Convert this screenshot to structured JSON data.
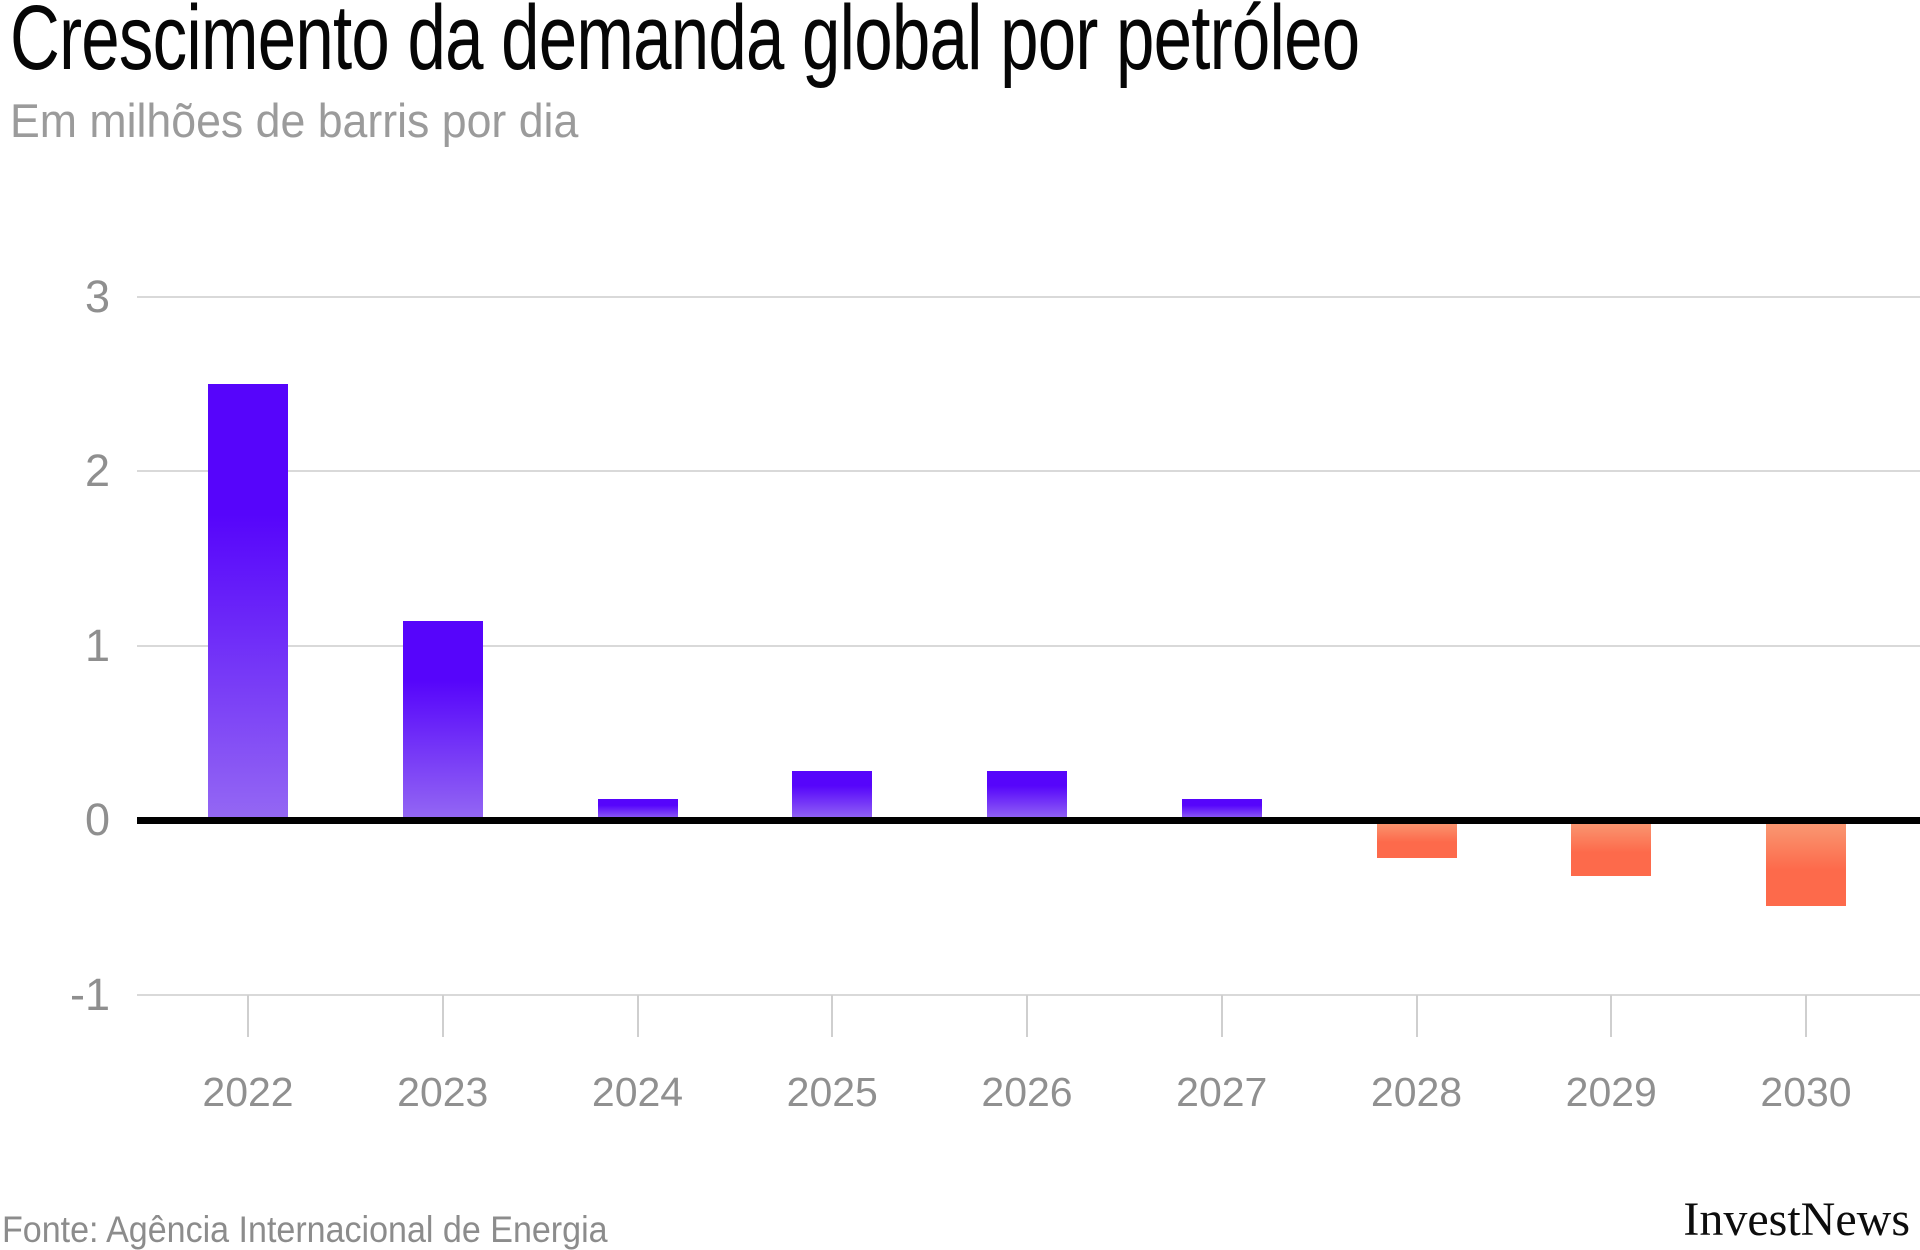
{
  "header": {
    "title": "Crescimento da demanda global por petróleo",
    "subtitle": "Em milhões de barris por dia"
  },
  "footer": {
    "source": "Fonte: Agência Internacional de Energia",
    "logo": "InvestNews"
  },
  "chart_data": {
    "type": "bar",
    "title": "Crescimento da demanda global por petróleo",
    "subtitle": "Em milhões de barris por dia",
    "categories": [
      "2022",
      "2023",
      "2024",
      "2025",
      "2026",
      "2027",
      "2028",
      "2029",
      "2030"
    ],
    "values": [
      2.5,
      1.14,
      0.12,
      0.28,
      0.28,
      0.12,
      -0.22,
      -0.32,
      -0.49
    ],
    "xlabel": "",
    "ylabel": "Em milhões de barris por dia",
    "y_ticks": [
      3,
      2,
      1,
      0,
      -1
    ],
    "y_tick_labels": [
      "3",
      "2",
      "1",
      "0",
      "-1"
    ],
    "ylim": [
      -1.3,
      3.3
    ],
    "grid": true,
    "legend": false,
    "colors": {
      "positive_bar_top": "#5605fb",
      "positive_bar_bottom": "#9468f3",
      "negative_bar_top": "#f99b75",
      "negative_bar_bottom": "#fd6a4b",
      "gridline": "#d9d9d9",
      "zero_line": "#000000",
      "tick": "#cfcfcf",
      "axis_text": "#8f8f8f"
    }
  }
}
